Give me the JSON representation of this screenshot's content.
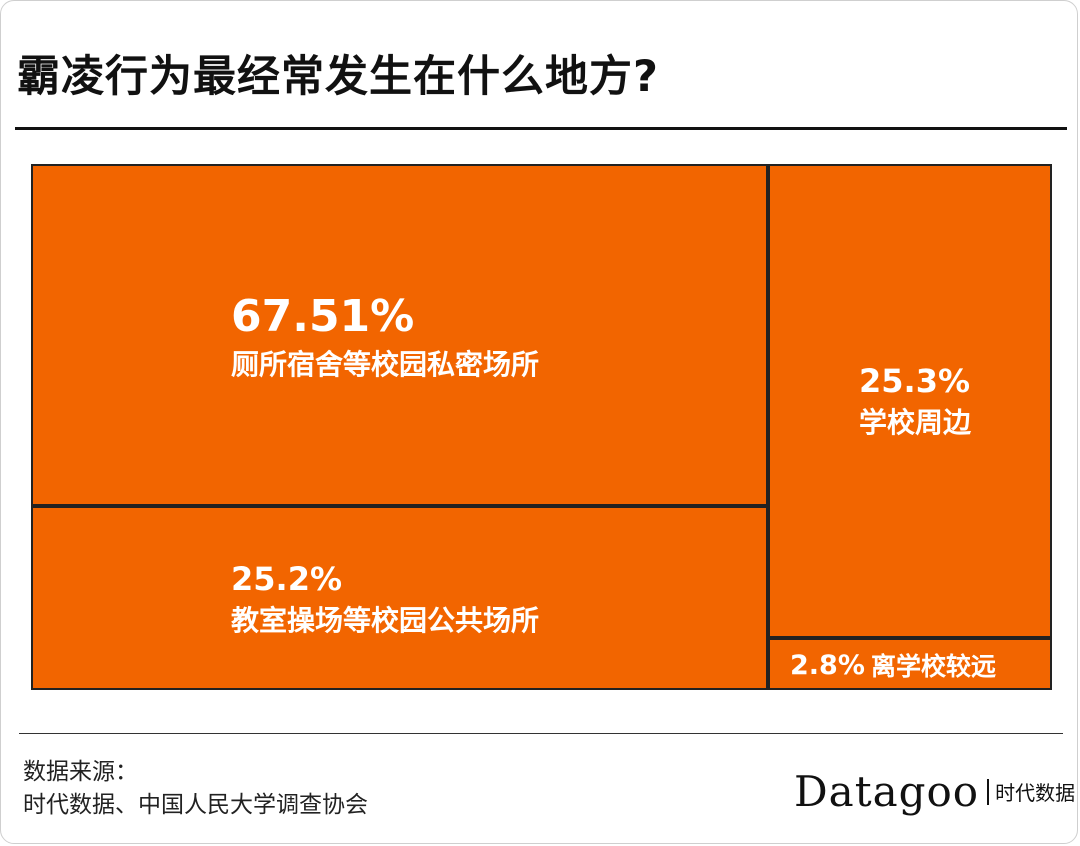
{
  "title": "霸凌行为最经常发生在什么地方?",
  "chart_data": {
    "type": "treemap",
    "unit": "%",
    "items": [
      {
        "label": "厕所宿舍等校园私密场所",
        "value": 67.51,
        "value_text": "67.51%"
      },
      {
        "label": "教室操场等校园公共场所",
        "value": 25.2,
        "value_text": "25.2%"
      },
      {
        "label": "学校周边",
        "value": 25.3,
        "value_text": "25.3%"
      },
      {
        "label": "离学校较远",
        "value": 2.8,
        "value_text": "2.8%"
      }
    ]
  },
  "colors": {
    "fill": "#f26500",
    "border": "#222222",
    "text": "#ffffff"
  },
  "source": {
    "label": "数据来源：",
    "text": "时代数据、中国人民大学调查协会"
  },
  "brand": {
    "name": "Datagoo",
    "sub": "时代数据"
  }
}
